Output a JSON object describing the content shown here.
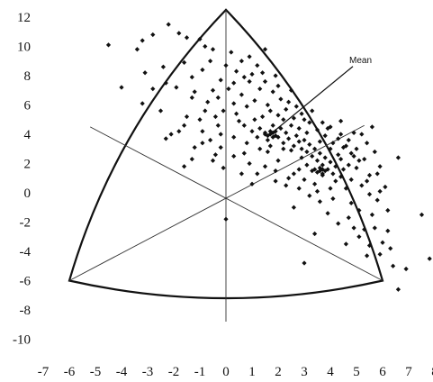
{
  "chart_data": {
    "type": "scatter",
    "title": "",
    "xlabel": "",
    "ylabel": "",
    "xlim": [
      -7,
      8
    ],
    "ylim": [
      -10,
      12
    ],
    "x_ticks": [
      "-7",
      "-6",
      "-5",
      "-4",
      "-3",
      "-2",
      "-1",
      "0",
      "1",
      "2",
      "3",
      "4",
      "5",
      "6",
      "7",
      "8"
    ],
    "y_ticks": [
      "12",
      "10",
      "8",
      "6",
      "4",
      "2",
      "0",
      "-2",
      "-4",
      "-6",
      "-8",
      "-10"
    ],
    "grid": false,
    "legend": "none",
    "triangle": {
      "vertices": [
        [
          0,
          12.5
        ],
        [
          -6,
          -6
        ],
        [
          6,
          -6
        ]
      ],
      "edges": "outward-curved",
      "center": [
        0,
        0
      ]
    },
    "axes_inside": [
      {
        "from": [
          0,
          12.5
        ],
        "to": [
          0,
          -8.8
        ]
      },
      {
        "from": [
          -6,
          -6
        ],
        "to": [
          5.3,
          4.6
        ]
      },
      {
        "from": [
          6,
          -6
        ],
        "to": [
          -5.2,
          4.5
        ]
      }
    ],
    "annotations": [
      {
        "text": "Mean",
        "point": [
          1.7,
          4.0
        ],
        "label_at": [
          5.0,
          9.0
        ]
      }
    ],
    "points": [
      [
        -4.5,
        10.1
      ],
      [
        -3.4,
        9.8
      ],
      [
        -3.2,
        10.4
      ],
      [
        -2.8,
        10.8
      ],
      [
        -2.2,
        11.5
      ],
      [
        -1.8,
        10.9
      ],
      [
        -1.5,
        10.6
      ],
      [
        -1.0,
        10.5
      ],
      [
        -0.8,
        10.0
      ],
      [
        -0.5,
        9.8
      ],
      [
        -3.1,
        8.2
      ],
      [
        -2.4,
        8.6
      ],
      [
        -1.6,
        8.9
      ],
      [
        -0.9,
        8.4
      ],
      [
        -4.0,
        7.2
      ],
      [
        -3.2,
        6.1
      ],
      [
        -1.5,
        5.2
      ],
      [
        -2.1,
        4.0
      ],
      [
        -2.3,
        3.7
      ],
      [
        -1.2,
        3.1
      ],
      [
        -1.6,
        1.8
      ],
      [
        0.2,
        9.6
      ],
      [
        0.6,
        9.0
      ],
      [
        1.2,
        8.7
      ],
      [
        1.0,
        8.1
      ],
      [
        0.4,
        8.3
      ],
      [
        0.9,
        7.6
      ],
      [
        1.3,
        7.1
      ],
      [
        -0.2,
        7.7
      ],
      [
        -0.5,
        7.0
      ],
      [
        -1.2,
        6.9
      ],
      [
        -0.7,
        6.2
      ],
      [
        -0.3,
        6.5
      ],
      [
        0.3,
        6.1
      ],
      [
        -0.1,
        5.6
      ],
      [
        -0.4,
        5.2
      ],
      [
        -1.0,
        5.0
      ],
      [
        -1.6,
        4.6
      ],
      [
        -0.9,
        4.2
      ],
      [
        -0.2,
        4.0
      ],
      [
        -0.6,
        3.6
      ],
      [
        -1.3,
        2.3
      ],
      [
        -0.5,
        2.2
      ],
      [
        -0.1,
        1.7
      ],
      [
        0.0,
        -1.8
      ],
      [
        -2.3,
        7.5
      ],
      [
        -1.9,
        7.2
      ],
      [
        -2.8,
        7.1
      ],
      [
        -1.3,
        6.5
      ],
      [
        -0.8,
        5.6
      ],
      [
        0.4,
        5.4
      ],
      [
        0.8,
        5.9
      ],
      [
        1.1,
        6.3
      ],
      [
        0.6,
        6.7
      ],
      [
        0.1,
        7.1
      ],
      [
        0.7,
        7.9
      ],
      [
        1.4,
        8.2
      ],
      [
        0.8,
        3.4
      ],
      [
        0.7,
        4.6
      ],
      [
        1.0,
        4.2
      ],
      [
        1.2,
        3.8
      ],
      [
        1.3,
        4.4
      ],
      [
        1.5,
        4.1
      ],
      [
        1.6,
        3.6
      ],
      [
        1.8,
        4.6
      ],
      [
        1.9,
        4.2
      ],
      [
        2.0,
        3.8
      ],
      [
        2.1,
        4.4
      ],
      [
        2.2,
        3.4
      ],
      [
        2.3,
        4.1
      ],
      [
        2.4,
        3.7
      ],
      [
        2.5,
        4.6
      ],
      [
        2.6,
        3.2
      ],
      [
        2.7,
        3.9
      ],
      [
        2.8,
        3.5
      ],
      [
        2.9,
        3.0
      ],
      [
        3.0,
        3.6
      ],
      [
        3.1,
        2.8
      ],
      [
        3.2,
        3.3
      ],
      [
        3.3,
        2.5
      ],
      [
        3.4,
        3.0
      ],
      [
        3.5,
        2.2
      ],
      [
        3.6,
        2.7
      ],
      [
        3.7,
        1.9
      ],
      [
        3.8,
        2.4
      ],
      [
        3.9,
        1.6
      ],
      [
        4.0,
        2.1
      ],
      [
        4.1,
        1.3
      ],
      [
        4.2,
        1.8
      ],
      [
        4.3,
        2.6
      ],
      [
        4.4,
        1.1
      ],
      [
        4.5,
        3.1
      ],
      [
        1.4,
        5.2
      ],
      [
        1.7,
        5.6
      ],
      [
        2.0,
        5.3
      ],
      [
        2.3,
        5.7
      ],
      [
        2.6,
        5.1
      ],
      [
        2.9,
        5.4
      ],
      [
        3.2,
        4.8
      ],
      [
        3.5,
        4.3
      ],
      [
        3.8,
        3.9
      ],
      [
        4.1,
        3.4
      ],
      [
        4.4,
        4.0
      ],
      [
        4.7,
        3.6
      ],
      [
        5.0,
        3.0
      ],
      [
        5.3,
        2.3
      ],
      [
        5.0,
        1.7
      ],
      [
        4.8,
        0.9
      ],
      [
        5.2,
        0.5
      ],
      [
        5.5,
        1.2
      ],
      [
        5.8,
        -0.5
      ],
      [
        5.6,
        -1.5
      ],
      [
        5.3,
        -2.5
      ],
      [
        5.1,
        -3.0
      ],
      [
        5.5,
        -3.6
      ],
      [
        5.9,
        -4.2
      ],
      [
        6.4,
        -5.0
      ],
      [
        6.6,
        -6.6
      ],
      [
        6.3,
        -3.8
      ],
      [
        6.6,
        2.4
      ],
      [
        7.5,
        -1.5
      ],
      [
        7.8,
        -4.5
      ],
      [
        6.9,
        -5.2
      ],
      [
        6.2,
        -1.2
      ],
      [
        5.4,
        -4.3
      ],
      [
        4.6,
        -3.5
      ],
      [
        3.4,
        -2.8
      ],
      [
        2.6,
        -1.0
      ],
      [
        3.0,
        -4.8
      ],
      [
        4.3,
        -2.1
      ],
      [
        3.6,
        -0.6
      ],
      [
        3.9,
        -1.4
      ],
      [
        4.8,
        -0.7
      ],
      [
        5.5,
        -0.1
      ],
      [
        6.1,
        0.4
      ],
      [
        5.9,
        1.8
      ],
      [
        4.9,
        2.5
      ],
      [
        4.6,
        0.3
      ],
      [
        5.6,
        4.5
      ],
      [
        2.0,
        2.2
      ],
      [
        2.4,
        1.0
      ],
      [
        1.6,
        2.8
      ],
      [
        1.2,
        1.3
      ],
      [
        1.9,
        0.8
      ],
      [
        0.9,
        2.0
      ],
      [
        2.8,
        1.6
      ],
      [
        3.4,
        0.6
      ],
      [
        3.1,
        1.9
      ],
      [
        2.1,
        6.4
      ],
      [
        1.8,
        6.9
      ],
      [
        2.4,
        6.2
      ],
      [
        1.5,
        7.6
      ],
      [
        1.9,
        8.0
      ],
      [
        1.1,
        5.0
      ],
      [
        0.5,
        4.9
      ],
      [
        -0.3,
        4.6
      ],
      [
        2.7,
        5.9
      ],
      [
        3.1,
        4.1
      ],
      [
        3.6,
        3.5
      ],
      [
        4.0,
        3.0
      ],
      [
        4.4,
        2.3
      ],
      [
        4.7,
        1.9
      ],
      [
        4.2,
        0.8
      ],
      [
        3.7,
        1.2
      ],
      [
        3.3,
        1.5
      ],
      [
        2.9,
        2.4
      ],
      [
        2.5,
        2.9
      ],
      [
        2.2,
        3.0
      ],
      [
        1.7,
        3.2
      ],
      [
        1.3,
        3.0
      ],
      [
        0.7,
        2.7
      ],
      [
        0.3,
        2.5
      ],
      [
        -0.2,
        3.1
      ],
      [
        -0.9,
        3.4
      ],
      [
        -1.8,
        4.2
      ],
      [
        -2.5,
        5.6
      ],
      [
        -1.3,
        7.9
      ],
      [
        -0.6,
        9.0
      ],
      [
        0.0,
        8.7
      ],
      [
        0.9,
        9.3
      ],
      [
        1.5,
        9.8
      ],
      [
        0.3,
        7.5
      ],
      [
        1.6,
        6.0
      ],
      [
        2.8,
        4.4
      ],
      [
        3.9,
        4.4
      ],
      [
        4.4,
        4.9
      ],
      [
        4.9,
        4.1
      ],
      [
        5.2,
        4.0
      ],
      [
        5.4,
        3.4
      ],
      [
        5.7,
        2.8
      ],
      [
        5.8,
        1.3
      ],
      [
        5.4,
        0.8
      ],
      [
        5.9,
        0.1
      ],
      [
        5.1,
        -1.2
      ],
      [
        4.7,
        -1.7
      ],
      [
        4.9,
        -2.4
      ],
      [
        5.7,
        -2.4
      ],
      [
        6.2,
        -2.6
      ],
      [
        6.0,
        -3.4
      ],
      [
        4.1,
        -0.4
      ],
      [
        3.2,
        -0.2
      ],
      [
        2.8,
        0.3
      ],
      [
        2.3,
        0.5
      ],
      [
        1.5,
        1.8
      ],
      [
        1.0,
        0.6
      ],
      [
        0.6,
        1.3
      ],
      [
        0.3,
        3.8
      ],
      [
        -0.4,
        2.6
      ],
      [
        2.0,
        7.3
      ],
      [
        2.5,
        7.0
      ],
      [
        2.2,
        5.0
      ],
      [
        3.0,
        5.0
      ],
      [
        3.3,
        5.6
      ],
      [
        3.7,
        4.8
      ],
      [
        4.0,
        4.5
      ],
      [
        4.3,
        3.7
      ],
      [
        4.6,
        3.2
      ],
      [
        4.8,
        2.7
      ],
      [
        5.1,
        2.2
      ],
      [
        4.5,
        1.6
      ],
      [
        4.0,
        0.3
      ],
      [
        3.5,
        0.1
      ],
      [
        3.0,
        0.9
      ],
      [
        2.6,
        1.3
      ],
      [
        1.9,
        1.5
      ],
      [
        1.7,
        4.0
      ],
      [
        1.8,
        4.1
      ],
      [
        1.6,
        3.9
      ],
      [
        1.7,
        4.2
      ],
      [
        1.8,
        3.8
      ],
      [
        1.5,
        4.0
      ],
      [
        1.9,
        3.9
      ],
      [
        3.6,
        1.5
      ],
      [
        3.7,
        1.6
      ],
      [
        3.5,
        1.4
      ],
      [
        3.8,
        1.5
      ],
      [
        3.6,
        1.7
      ],
      [
        3.4,
        1.6
      ],
      [
        3.7,
        1.3
      ]
    ]
  }
}
